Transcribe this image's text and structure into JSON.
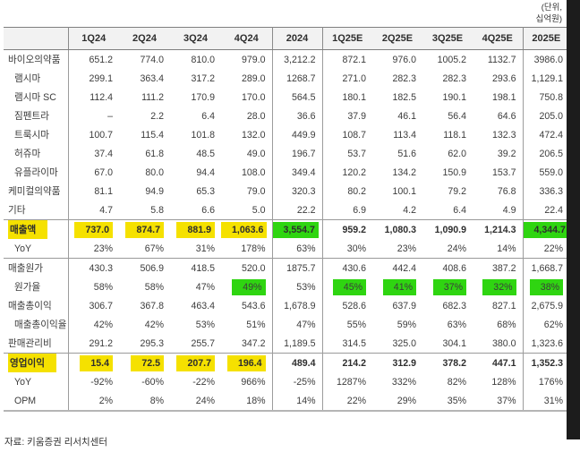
{
  "unit_note": {
    "line1": "(단위,",
    "line2": "십억원)"
  },
  "footer": "자료: 키움증권 리서치센터",
  "colors": {
    "highlight_yellow": "#F5E100",
    "highlight_green": "#2FD511",
    "header_bg": "#F2F2F2"
  },
  "table": {
    "columns": [
      "",
      "1Q24",
      "2Q24",
      "3Q24",
      "4Q24",
      "2024",
      "1Q25E",
      "2Q25E",
      "3Q25E",
      "4Q25E",
      "2025E"
    ],
    "rows": [
      {
        "label": "바이오의약품",
        "indent": false,
        "bold": false,
        "sep": false,
        "label_hl": null,
        "values": [
          "651.2",
          "774.0",
          "810.0",
          "979.0",
          "3,212.2",
          "872.1",
          "976.0",
          "1005.2",
          "1132.7",
          "3986.0"
        ],
        "hl": [
          null,
          null,
          null,
          null,
          null,
          null,
          null,
          null,
          null,
          null
        ]
      },
      {
        "label": "램시마",
        "indent": true,
        "bold": false,
        "sep": false,
        "label_hl": null,
        "values": [
          "299.1",
          "363.4",
          "317.2",
          "289.0",
          "1268.7",
          "271.0",
          "282.3",
          "282.3",
          "293.6",
          "1,129.1"
        ],
        "hl": [
          null,
          null,
          null,
          null,
          null,
          null,
          null,
          null,
          null,
          null
        ]
      },
      {
        "label": "램시마 SC",
        "indent": true,
        "bold": false,
        "sep": false,
        "label_hl": null,
        "values": [
          "112.4",
          "111.2",
          "170.9",
          "170.0",
          "564.5",
          "180.1",
          "182.5",
          "190.1",
          "198.1",
          "750.8"
        ],
        "hl": [
          null,
          null,
          null,
          null,
          null,
          null,
          null,
          null,
          null,
          null
        ]
      },
      {
        "label": "짐펜트라",
        "indent": true,
        "bold": false,
        "sep": false,
        "label_hl": null,
        "values": [
          "–",
          "2.2",
          "6.4",
          "28.0",
          "36.6",
          "37.9",
          "46.1",
          "56.4",
          "64.6",
          "205.0"
        ],
        "hl": [
          null,
          null,
          null,
          null,
          null,
          null,
          null,
          null,
          null,
          null
        ]
      },
      {
        "label": "트룩시마",
        "indent": true,
        "bold": false,
        "sep": false,
        "label_hl": null,
        "values": [
          "100.7",
          "115.4",
          "101.8",
          "132.0",
          "449.9",
          "108.7",
          "113.4",
          "118.1",
          "132.3",
          "472.4"
        ],
        "hl": [
          null,
          null,
          null,
          null,
          null,
          null,
          null,
          null,
          null,
          null
        ]
      },
      {
        "label": "허쥬마",
        "indent": true,
        "bold": false,
        "sep": false,
        "label_hl": null,
        "values": [
          "37.4",
          "61.8",
          "48.5",
          "49.0",
          "196.7",
          "53.7",
          "51.6",
          "62.0",
          "39.2",
          "206.5"
        ],
        "hl": [
          null,
          null,
          null,
          null,
          null,
          null,
          null,
          null,
          null,
          null
        ]
      },
      {
        "label": "유플라이마",
        "indent": true,
        "bold": false,
        "sep": false,
        "label_hl": null,
        "values": [
          "67.0",
          "80.0",
          "94.4",
          "108.0",
          "349.4",
          "120.2",
          "134.2",
          "150.9",
          "153.7",
          "559.0"
        ],
        "hl": [
          null,
          null,
          null,
          null,
          null,
          null,
          null,
          null,
          null,
          null
        ]
      },
      {
        "label": "케미컬의약품",
        "indent": false,
        "bold": false,
        "sep": false,
        "label_hl": null,
        "values": [
          "81.1",
          "94.9",
          "65.3",
          "79.0",
          "320.3",
          "80.2",
          "100.1",
          "79.2",
          "76.8",
          "336.3"
        ],
        "hl": [
          null,
          null,
          null,
          null,
          null,
          null,
          null,
          null,
          null,
          null
        ]
      },
      {
        "label": "기타",
        "indent": false,
        "bold": false,
        "sep": false,
        "label_hl": null,
        "values": [
          "4.7",
          "5.8",
          "6.6",
          "5.0",
          "22.2",
          "6.9",
          "4.2",
          "6.4",
          "4.9",
          "22.4"
        ],
        "hl": [
          null,
          null,
          null,
          null,
          null,
          null,
          null,
          null,
          null,
          null
        ]
      },
      {
        "label": "매출액",
        "indent": false,
        "bold": true,
        "sep": true,
        "label_hl": "yellow",
        "values": [
          "737.0",
          "874.7",
          "881.9",
          "1,063.6",
          "3,554.7",
          "959.2",
          "1,080.3",
          "1,090.9",
          "1,214.3",
          "4,344.7"
        ],
        "hl": [
          "yellow",
          "yellow",
          "yellow",
          "yellow",
          "green",
          null,
          null,
          null,
          null,
          "green"
        ]
      },
      {
        "label": "YoY",
        "indent": true,
        "bold": false,
        "sep": false,
        "label_hl": null,
        "values": [
          "23%",
          "67%",
          "31%",
          "178%",
          "63%",
          "30%",
          "23%",
          "24%",
          "14%",
          "22%"
        ],
        "hl": [
          null,
          null,
          null,
          null,
          null,
          null,
          null,
          null,
          null,
          null
        ]
      },
      {
        "label": "매출원가",
        "indent": false,
        "bold": false,
        "sep": true,
        "label_hl": null,
        "values": [
          "430.3",
          "506.9",
          "418.5",
          "520.0",
          "1875.7",
          "430.6",
          "442.4",
          "408.6",
          "387.2",
          "1,668.7"
        ],
        "hl": [
          null,
          null,
          null,
          null,
          null,
          null,
          null,
          null,
          null,
          null
        ]
      },
      {
        "label": "원가율",
        "indent": true,
        "bold": false,
        "sep": false,
        "label_hl": null,
        "values": [
          "58%",
          "58%",
          "47%",
          "49%",
          "53%",
          "45%",
          "41%",
          "37%",
          "32%",
          "38%"
        ],
        "hl": [
          null,
          null,
          null,
          "green",
          null,
          "green",
          "green",
          "green",
          "green",
          "green"
        ]
      },
      {
        "label": "매출총이익",
        "indent": false,
        "bold": false,
        "sep": false,
        "label_hl": null,
        "values": [
          "306.7",
          "367.8",
          "463.4",
          "543.6",
          "1,678.9",
          "528.6",
          "637.9",
          "682.3",
          "827.1",
          "2,675.9"
        ],
        "hl": [
          null,
          null,
          null,
          null,
          null,
          null,
          null,
          null,
          null,
          null
        ]
      },
      {
        "label": "매출총이익율",
        "indent": true,
        "bold": false,
        "sep": false,
        "label_hl": null,
        "values": [
          "42%",
          "42%",
          "53%",
          "51%",
          "47%",
          "55%",
          "59%",
          "63%",
          "68%",
          "62%"
        ],
        "hl": [
          null,
          null,
          null,
          null,
          null,
          null,
          null,
          null,
          null,
          null
        ]
      },
      {
        "label": "판매관리비",
        "indent": false,
        "bold": false,
        "sep": false,
        "label_hl": null,
        "values": [
          "291.2",
          "295.3",
          "255.7",
          "347.2",
          "1,189.5",
          "314.5",
          "325.0",
          "304.1",
          "380.0",
          "1,323.6"
        ],
        "hl": [
          null,
          null,
          null,
          null,
          null,
          null,
          null,
          null,
          null,
          null
        ]
      },
      {
        "label": "영업이익",
        "indent": false,
        "bold": true,
        "sep": true,
        "label_hl": "yellow",
        "values": [
          "15.4",
          "72.5",
          "207.7",
          "196.4",
          "489.4",
          "214.2",
          "312.9",
          "378.2",
          "447.1",
          "1,352.3"
        ],
        "hl": [
          "yellow",
          "yellow",
          "yellow",
          "yellow",
          null,
          null,
          null,
          null,
          null,
          null
        ]
      },
      {
        "label": "YoY",
        "indent": true,
        "bold": false,
        "sep": false,
        "label_hl": null,
        "values": [
          "-92%",
          "-60%",
          "-22%",
          "966%",
          "-25%",
          "1287%",
          "332%",
          "82%",
          "128%",
          "176%"
        ],
        "hl": [
          null,
          null,
          null,
          null,
          null,
          null,
          null,
          null,
          null,
          null
        ]
      },
      {
        "label": "OPM",
        "indent": true,
        "bold": false,
        "sep": false,
        "label_hl": null,
        "values": [
          "2%",
          "8%",
          "24%",
          "18%",
          "14%",
          "22%",
          "29%",
          "35%",
          "37%",
          "31%"
        ],
        "hl": [
          null,
          null,
          null,
          null,
          null,
          null,
          null,
          null,
          null,
          null
        ]
      }
    ]
  }
}
